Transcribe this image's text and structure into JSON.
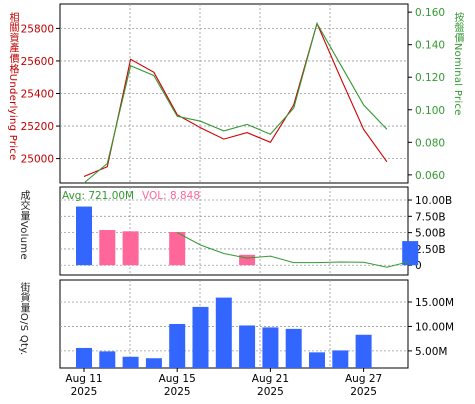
{
  "chart_data": [
    {
      "type": "line",
      "panel": "price",
      "ylabel_left": "相關資產價格Underlying Price",
      "ylabel_right": "按盤價Nominal Price",
      "left_axis": {
        "range": [
          24850,
          25950
        ],
        "ticks": [
          25000,
          25200,
          25400,
          25600,
          25800
        ]
      },
      "right_axis": {
        "range": [
          0.055,
          0.165
        ],
        "ticks": [
          "0.060",
          "0.080",
          "0.100",
          "0.120",
          "0.140",
          "0.160"
        ]
      },
      "grid": true,
      "series": [
        {
          "name": "Underlying Price",
          "axis": "left",
          "color": "#cc0000",
          "x": [
            1,
            2,
            3,
            4,
            5,
            6,
            7,
            8,
            9,
            10,
            11,
            12,
            13,
            14,
            15
          ],
          "values": [
            24890,
            24950,
            25610,
            25530,
            25270,
            25190,
            25120,
            25160,
            25100,
            25330,
            25830,
            25500,
            25180,
            24980,
            null
          ]
        },
        {
          "name": "Nominal Price",
          "axis": "right",
          "color": "#339933",
          "x": [
            1,
            2,
            3,
            4,
            5,
            6,
            7,
            8,
            9,
            10,
            11,
            12,
            13,
            14,
            15
          ],
          "values": [
            0.055,
            0.067,
            0.127,
            0.121,
            0.096,
            0.093,
            0.087,
            0.091,
            0.085,
            0.101,
            0.153,
            0.128,
            0.103,
            0.088,
            null
          ]
        }
      ]
    },
    {
      "type": "bar",
      "panel": "volume",
      "ylabel_left": "成交量Volume",
      "avg_label": "Avg: 721.00M",
      "vol_label": "VOL: 8.848",
      "right_axis": {
        "range": [
          -1.5,
          12
        ],
        "ticks": [
          0,
          2.5,
          5,
          7.5,
          10
        ],
        "tick_labels": [
          "0",
          "2.50B",
          "5.00B",
          "7.50B",
          "10.00B"
        ]
      },
      "grid": true,
      "x": [
        1,
        2,
        3,
        4,
        5,
        6,
        7,
        8,
        9,
        10,
        11,
        12,
        13,
        14,
        15
      ],
      "values": [
        9.0,
        5.4,
        5.2,
        0,
        5.1,
        0,
        0,
        1.6,
        0,
        0,
        0,
        0,
        0,
        0,
        3.7
      ],
      "colors": [
        "#3366ff",
        "#ff6699",
        "#ff6699",
        null,
        "#ff6699",
        null,
        null,
        "#ff6699",
        null,
        null,
        null,
        null,
        null,
        null,
        "#3366ff"
      ],
      "volatility_line": {
        "name": "VOL",
        "color": "#339933",
        "x": [
          5,
          6,
          7,
          8,
          9,
          10,
          11,
          12,
          13,
          14,
          15
        ],
        "values": [
          5.0,
          3.1,
          1.8,
          1.1,
          1.4,
          0.4,
          0.4,
          0.5,
          0.45,
          -0.3,
          0.6
        ]
      }
    },
    {
      "type": "bar",
      "panel": "outstanding",
      "ylabel_left": "街貨量O/S Qty.",
      "right_axis": {
        "range": [
          1.5,
          19.5
        ],
        "ticks": [
          5,
          10,
          15
        ],
        "tick_labels": [
          "5.00M",
          "10.00M",
          "15.00M"
        ]
      },
      "grid": true,
      "x": [
        1,
        2,
        3,
        4,
        5,
        6,
        7,
        8,
        9,
        10,
        11,
        12,
        13,
        14,
        15
      ],
      "values": [
        5.6,
        4.9,
        3.8,
        3.5,
        10.5,
        14.0,
        15.9,
        10.2,
        9.8,
        9.5,
        4.7,
        5.1,
        8.3,
        null,
        null
      ],
      "color": "#3366ff"
    }
  ],
  "x_axis": {
    "ticks": [
      {
        "x": 1,
        "line1": "Aug 11",
        "line2": "2025"
      },
      {
        "x": 5,
        "line1": "Aug 15",
        "line2": "2025"
      },
      {
        "x": 9,
        "line1": "Aug 21",
        "line2": "2025"
      },
      {
        "x": 13,
        "line1": "Aug 27",
        "line2": "2025"
      }
    ]
  }
}
